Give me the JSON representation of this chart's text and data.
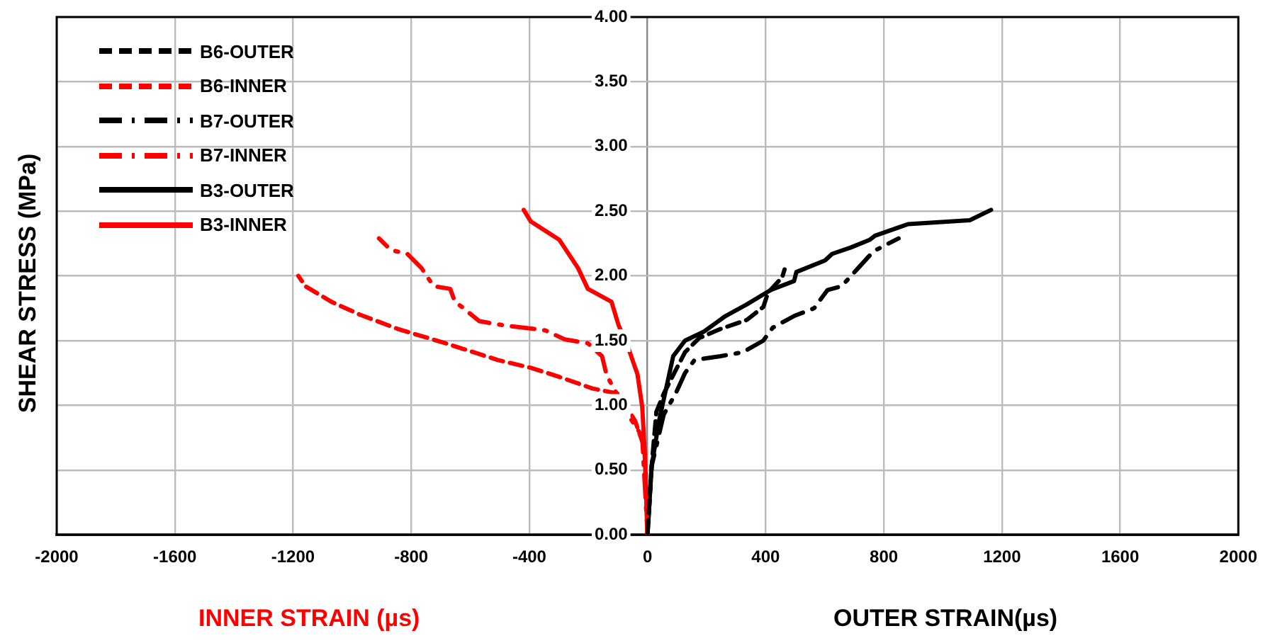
{
  "chart_data": {
    "type": "line",
    "xlabel": "OUTER STRAIN(µs)",
    "ylabel": "SHEAR STRESS (MPa)",
    "annotations": [
      "INNER STRAIN (µs)"
    ],
    "xlim": [
      -2000,
      2000
    ],
    "xticks": [
      -2000,
      -1600,
      -1200,
      -800,
      -400,
      0,
      400,
      800,
      1200,
      1600,
      2000
    ],
    "ylim": [
      0,
      4
    ],
    "yticks": [
      {
        "value": 0,
        "label": "0.00"
      },
      {
        "value": 0.5,
        "label": "0.50"
      },
      {
        "value": 1,
        "label": "1.00"
      },
      {
        "value": 1.5,
        "label": "1.50"
      },
      {
        "value": 2,
        "label": "2.00"
      },
      {
        "value": 2.5,
        "label": "2.50"
      },
      {
        "value": 3,
        "label": "3.00"
      },
      {
        "value": 3.5,
        "label": "3.50"
      },
      {
        "value": 4,
        "label": "4.00"
      }
    ],
    "grid": true,
    "legend": "top left",
    "marker": "none",
    "series": [
      {
        "name": "B6-OUTER",
        "color": "#000000",
        "line_style": "dashed",
        "x": [
          0,
          14,
          30,
          55,
          95,
          127,
          175,
          247,
          336,
          392,
          408,
          456,
          464
        ],
        "values": [
          0,
          0.53,
          0.95,
          1.09,
          1.27,
          1.41,
          1.52,
          1.59,
          1.66,
          1.76,
          1.87,
          1.99,
          2.05
        ]
      },
      {
        "name": "B6-INNER",
        "color": "#ff0000",
        "line_style": "dashed",
        "x": [
          0,
          -10,
          -42,
          -98,
          -186,
          -299,
          -395,
          -507,
          -588,
          -684,
          -845,
          -973,
          -1070,
          -1158,
          -1182
        ],
        "values": [
          0,
          0.67,
          0.88,
          1.09,
          1.13,
          1.22,
          1.29,
          1.35,
          1.41,
          1.48,
          1.59,
          1.7,
          1.8,
          1.92,
          2.0
        ]
      },
      {
        "name": "B7-OUTER",
        "color": "#000000",
        "line_style": "dotted",
        "x": [
          0,
          14,
          55,
          95,
          127,
          159,
          247,
          323,
          392,
          424,
          496,
          564,
          609,
          657,
          713,
          765,
          850
        ],
        "values": [
          0,
          0.53,
          0.93,
          1.09,
          1.25,
          1.35,
          1.38,
          1.41,
          1.5,
          1.6,
          1.69,
          1.75,
          1.89,
          1.92,
          2.06,
          2.19,
          2.29
        ]
      },
      {
        "name": "B7-INNER",
        "color": "#ff0000",
        "line_style": "dotted",
        "x": [
          0,
          -18,
          -58,
          -138,
          -154,
          -202,
          -280,
          -347,
          -492,
          -569,
          -628,
          -652,
          -668,
          -724,
          -765,
          -813,
          -869,
          -909
        ],
        "values": [
          0,
          0.76,
          0.9,
          1.23,
          1.38,
          1.48,
          1.51,
          1.58,
          1.62,
          1.65,
          1.76,
          1.8,
          1.9,
          1.92,
          2.06,
          2.17,
          2.2,
          2.29
        ]
      },
      {
        "name": "B3-OUTER",
        "color": "#000000",
        "line_style": "solid",
        "x": [
          0,
          14,
          39,
          63,
          87,
          127,
          191,
          264,
          336,
          416,
          496,
          504,
          601,
          625,
          689,
          753,
          770,
          882,
          1091,
          1163
        ],
        "values": [
          0,
          0.53,
          0.88,
          1.13,
          1.38,
          1.5,
          1.57,
          1.69,
          1.78,
          1.89,
          1.96,
          2.03,
          2.12,
          2.17,
          2.22,
          2.28,
          2.31,
          2.4,
          2.43,
          2.51
        ]
      },
      {
        "name": "B3-INNER",
        "color": "#ff0000",
        "line_style": "solid",
        "x": [
          0,
          -10,
          -18,
          -34,
          -66,
          -98,
          -122,
          -202,
          -235,
          -299,
          -395,
          -419
        ],
        "values": [
          0,
          0.67,
          0.99,
          1.24,
          1.45,
          1.62,
          1.8,
          1.9,
          2.06,
          2.28,
          2.42,
          2.51
        ]
      }
    ]
  }
}
